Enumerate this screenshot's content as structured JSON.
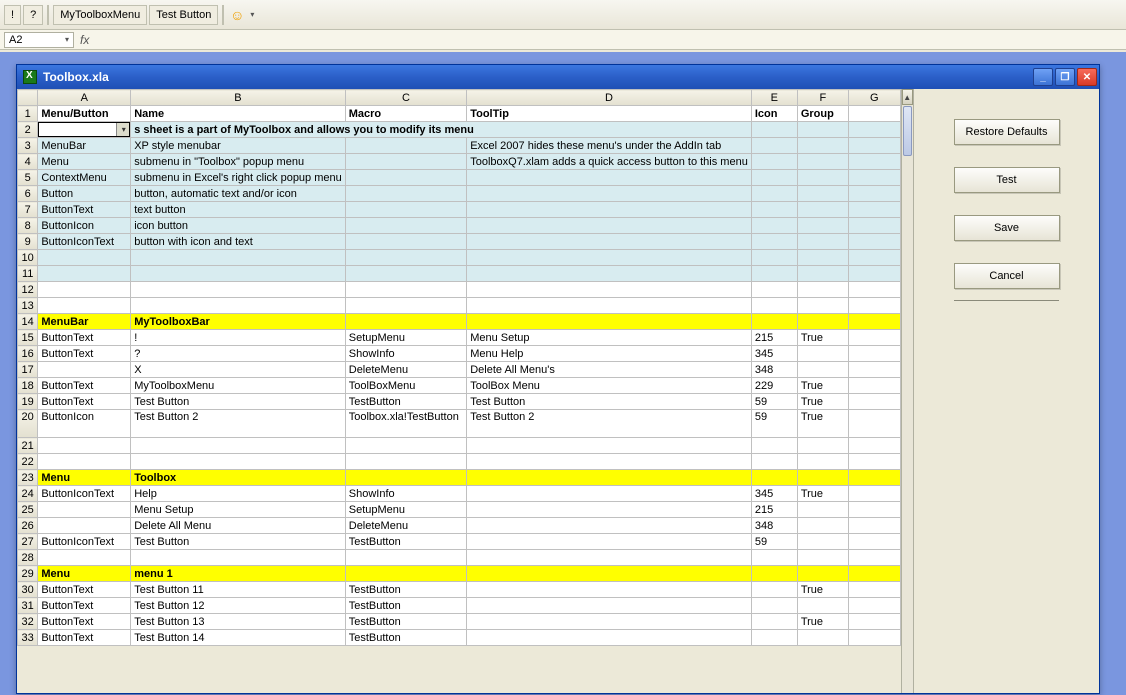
{
  "toolbar": {
    "excl": "!",
    "q": "?",
    "btn1": "MyToolboxMenu",
    "btn2": "Test Button",
    "smiley": "☺"
  },
  "cellref": "A2",
  "fx": "fx",
  "window": {
    "title": "Toolbox.xla",
    "min": "_",
    "max": "❐",
    "close": "✕"
  },
  "cols": {
    "widths": {
      "rh": 24,
      "A": 136,
      "B": 212,
      "C": 136,
      "D": 178,
      "E": 100,
      "F": 88,
      "G": 170
    },
    "letters": [
      "A",
      "B",
      "C",
      "D",
      "E",
      "F",
      "G"
    ]
  },
  "headers": {
    "A": "Menu/Button",
    "B": "Name",
    "C": "Macro",
    "D": "ToolTip",
    "E": "Icon",
    "F": "Group",
    "G": ""
  },
  "row2": {
    "desc": "s sheet is a part of MyToolbox and allows you to modify its menu"
  },
  "rows": [
    {
      "n": 3,
      "cls": "light",
      "A": "MenuBar",
      "B": "XP style menubar",
      "D": "Excel 2007 hides these menu's under the AddIn tab"
    },
    {
      "n": 4,
      "cls": "light",
      "A": "Menu",
      "B": "submenu in \"Toolbox\" popup menu",
      "D": "ToolboxQ7.xlam adds a quick access button to this menu"
    },
    {
      "n": 5,
      "cls": "light",
      "A": "ContextMenu",
      "B": "submenu in Excel's right click popup menu"
    },
    {
      "n": 6,
      "cls": "light",
      "A": "Button",
      "B": "button, automatic text and/or icon"
    },
    {
      "n": 7,
      "cls": "light",
      "A": "ButtonText",
      "B": "text button"
    },
    {
      "n": 8,
      "cls": "light",
      "A": "ButtonIcon",
      "B": "icon button"
    },
    {
      "n": 9,
      "cls": "light",
      "A": "ButtonIconText",
      "B": "button with icon and text"
    },
    {
      "n": 10,
      "cls": "light"
    },
    {
      "n": 11,
      "cls": "light"
    },
    {
      "n": 12
    },
    {
      "n": 13
    },
    {
      "n": 14,
      "cls": "yellow",
      "A": "MenuBar",
      "B": "MyToolboxBar"
    },
    {
      "n": 15,
      "A": "ButtonText",
      "B": "!",
      "C": "SetupMenu",
      "D": "Menu Setup",
      "E": "215",
      "F": "True"
    },
    {
      "n": 16,
      "A": "ButtonText",
      "B": "?",
      "C": "ShowInfo",
      "D": "Menu Help",
      "E": "345"
    },
    {
      "n": 17,
      "B": "X",
      "C": "DeleteMenu",
      "D": "Delete All Menu's",
      "E": "348"
    },
    {
      "n": 18,
      "A": "ButtonText",
      "B": "MyToolboxMenu",
      "C": "ToolBoxMenu",
      "D": "ToolBox Menu",
      "E": "229",
      "F": "True"
    },
    {
      "n": 19,
      "A": "ButtonText",
      "B": "Test Button",
      "C": "TestButton",
      "D": "Test Button",
      "E": "59",
      "F": "True"
    },
    {
      "n": 20,
      "tall": true,
      "A": "ButtonIcon",
      "B": "Test Button 2",
      "C": "Toolbox.xla!TestButton",
      "D": "Test Button 2",
      "E": "59",
      "F": "True"
    },
    {
      "n": 21
    },
    {
      "n": 22
    },
    {
      "n": 23,
      "cls": "yellow",
      "A": "Menu",
      "B": "Toolbox"
    },
    {
      "n": 24,
      "A": "ButtonIconText",
      "B": "Help",
      "C": "ShowInfo",
      "E": "345",
      "F": "True"
    },
    {
      "n": 25,
      "B": "Menu Setup",
      "C": "SetupMenu",
      "E": "215"
    },
    {
      "n": 26,
      "B": "Delete All Menu",
      "C": "DeleteMenu",
      "E": "348"
    },
    {
      "n": 27,
      "A": "ButtonIconText",
      "B": "Test Button",
      "C": "TestButton",
      "E": "59"
    },
    {
      "n": 28
    },
    {
      "n": 29,
      "cls": "yellow",
      "A": "Menu",
      "B": "menu 1"
    },
    {
      "n": 30,
      "A": "ButtonText",
      "B": "Test Button 11",
      "C": "TestButton",
      "F": "True"
    },
    {
      "n": 31,
      "A": "ButtonText",
      "B": "Test Button 12",
      "C": "TestButton"
    },
    {
      "n": 32,
      "A": "ButtonText",
      "B": "Test Button 13",
      "C": "TestButton",
      "F": "True"
    },
    {
      "n": 33,
      "A": "ButtonText",
      "B": "Test Button 14",
      "C": "TestButton"
    }
  ],
  "buttons": {
    "restore": "Restore Defaults",
    "test": "Test",
    "save": "Save",
    "cancel": "Cancel"
  },
  "colors": {
    "light_row": "#d8ecf0",
    "yellow_row": "#ffff00",
    "titlebar_from": "#3b77e0",
    "titlebar_to": "#1f4fb5",
    "workspace": "#7a96df"
  }
}
